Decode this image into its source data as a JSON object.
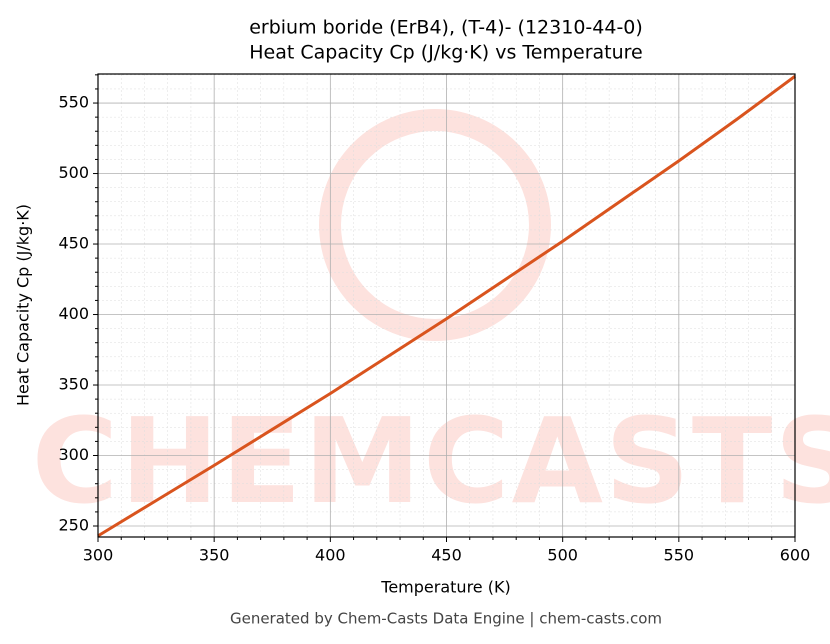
{
  "chart_data": {
    "type": "line",
    "title": "erbium boride (ErB4), (T-4)- (12310-44-0)",
    "subtitle": "Heat Capacity Cp (J/kg·K) vs Temperature",
    "x_label": "Temperature (K)",
    "y_label": "Heat Capacity Cp (J/kg·K)",
    "watermark": "CHEMCASTS",
    "footer": "Generated by Chem-Casts Data Engine | chem-casts.com",
    "x": [
      300,
      325,
      350,
      375,
      400,
      425,
      450,
      475,
      500,
      525,
      550,
      575,
      600
    ],
    "series": [
      {
        "name": "Heat Capacity Cp",
        "color": "#d9541e",
        "values": [
          243,
          268,
          293,
          318.5,
          344,
          370.5,
          397,
          424.5,
          452,
          480.5,
          509,
          538.5,
          569
        ]
      }
    ],
    "xlim": [
      300,
      600
    ],
    "xticks": [
      300,
      350,
      400,
      450,
      500,
      550,
      600
    ],
    "ylim": [
      242.2,
      570.6
    ],
    "yticks": [
      250,
      300,
      350,
      400,
      450,
      500,
      550
    ],
    "grid": true
  }
}
